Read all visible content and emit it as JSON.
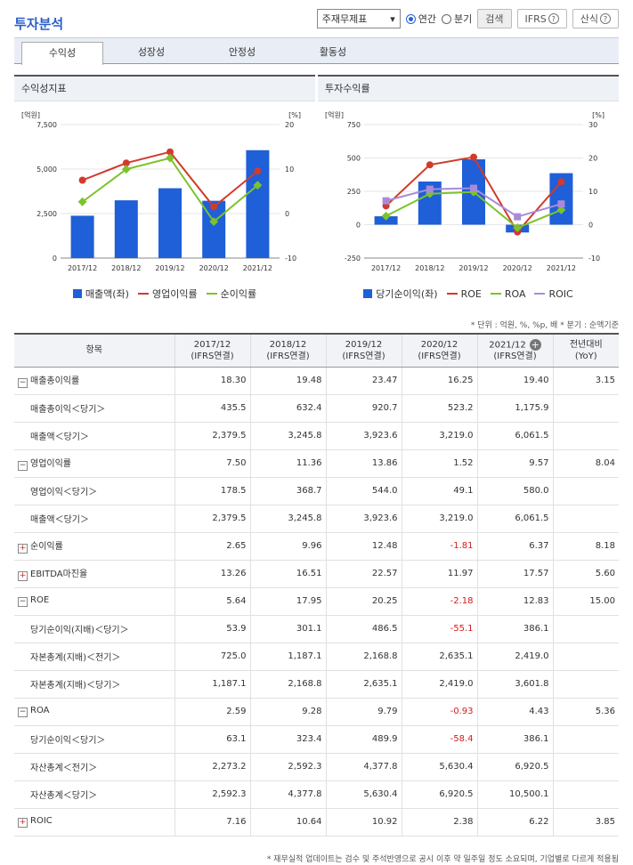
{
  "title": "투자분석",
  "controls": {
    "select": "주재무제표",
    "radio_annual": "연간",
    "radio_quarter": "분기",
    "search": "검색",
    "ifrs": "IFRS",
    "formula": "산식"
  },
  "tabs": [
    "수익성",
    "성장성",
    "안정성",
    "활동성"
  ],
  "left_chart": {
    "title": "수익성지표",
    "left_unit": "[억원]",
    "right_unit": "[%]"
  },
  "right_chart": {
    "title": "투자수익률",
    "left_unit": "[억원]",
    "right_unit": "[%]"
  },
  "legend_left": [
    "매출액(좌)",
    "영업이익률",
    "순이익률"
  ],
  "legend_right": [
    "당기순이익(좌)",
    "ROE",
    "ROA",
    "ROIC"
  ],
  "colors": {
    "bar": "#1f5fd8",
    "red": "#d23a2b",
    "green": "#7cc32a",
    "purple": "#a98ad8"
  },
  "chart_data": [
    {
      "type": "bar",
      "categories": [
        "2017/12",
        "2018/12",
        "2019/12",
        "2020/12",
        "2021/12"
      ],
      "series": [
        {
          "name": "매출액(좌)",
          "values": [
            2379.5,
            3245.8,
            3923.6,
            3219.0,
            6061.5
          ],
          "axis": "left"
        },
        {
          "name": "영업이익률",
          "values": [
            7.5,
            11.36,
            13.86,
            1.52,
            9.57
          ],
          "axis": "right"
        },
        {
          "name": "순이익률",
          "values": [
            2.65,
            9.96,
            12.48,
            -1.81,
            6.37
          ],
          "axis": "right"
        }
      ],
      "left_ticks": [
        "0",
        "2,500",
        "5,000",
        "7,500"
      ],
      "right_ticks": [
        "-10",
        "0",
        "10",
        "20"
      ],
      "ylim": [
        0,
        7500
      ],
      "y2lim": [
        -10,
        20
      ]
    },
    {
      "type": "bar",
      "categories": [
        "2017/12",
        "2018/12",
        "2019/12",
        "2020/12",
        "2021/12"
      ],
      "series": [
        {
          "name": "당기순이익(좌)",
          "values": [
            63.1,
            323.4,
            489.9,
            -58.4,
            386.1
          ],
          "axis": "left"
        },
        {
          "name": "ROE",
          "values": [
            5.64,
            17.95,
            20.25,
            -2.18,
            12.83
          ],
          "axis": "right"
        },
        {
          "name": "ROA",
          "values": [
            2.59,
            9.28,
            9.79,
            -0.93,
            4.43
          ],
          "axis": "right"
        },
        {
          "name": "ROIC",
          "values": [
            7.16,
            10.64,
            10.92,
            2.38,
            6.22
          ],
          "axis": "right"
        }
      ],
      "left_ticks": [
        "-250",
        "0",
        "250",
        "500",
        "750"
      ],
      "right_ticks": [
        "-10",
        "0",
        "10",
        "20",
        "30"
      ],
      "ylim": [
        -250,
        750
      ],
      "y2lim": [
        -10,
        30
      ]
    }
  ],
  "note": "* 단위 : 억원, %, %p, 배   * 분기 : 순액기준",
  "table": {
    "headers": [
      [
        "항목"
      ],
      [
        "2017/12",
        "(IFRS연결)"
      ],
      [
        "2018/12",
        "(IFRS연결)"
      ],
      [
        "2019/12",
        "(IFRS연결)"
      ],
      [
        "2020/12",
        "(IFRS연결)"
      ],
      [
        "2021/12",
        "(IFRS연결)"
      ],
      [
        "전년대비",
        "(YoY)"
      ]
    ],
    "rows": [
      {
        "label": "매출총이익률",
        "type": "minus",
        "vals": [
          "18.30",
          "19.48",
          "23.47",
          "16.25",
          "19.40",
          "3.15"
        ]
      },
      {
        "label": "매출총이익＜당기＞",
        "type": "sub",
        "vals": [
          "435.5",
          "632.4",
          "920.7",
          "523.2",
          "1,175.9",
          ""
        ]
      },
      {
        "label": "매출액＜당기＞",
        "type": "sub",
        "vals": [
          "2,379.5",
          "3,245.8",
          "3,923.6",
          "3,219.0",
          "6,061.5",
          ""
        ]
      },
      {
        "label": "영업이익률",
        "type": "minus",
        "vals": [
          "7.50",
          "11.36",
          "13.86",
          "1.52",
          "9.57",
          "8.04"
        ]
      },
      {
        "label": "영업이익＜당기＞",
        "type": "sub",
        "vals": [
          "178.5",
          "368.7",
          "544.0",
          "49.1",
          "580.0",
          ""
        ]
      },
      {
        "label": "매출액＜당기＞",
        "type": "sub",
        "vals": [
          "2,379.5",
          "3,245.8",
          "3,923.6",
          "3,219.0",
          "6,061.5",
          ""
        ]
      },
      {
        "label": "순이익률",
        "type": "plus",
        "vals": [
          "2.65",
          "9.96",
          "12.48",
          "-1.81",
          "6.37",
          "8.18"
        ]
      },
      {
        "label": "EBITDA마진율",
        "type": "plus",
        "vals": [
          "13.26",
          "16.51",
          "22.57",
          "11.97",
          "17.57",
          "5.60"
        ]
      },
      {
        "label": "ROE",
        "type": "minus",
        "vals": [
          "5.64",
          "17.95",
          "20.25",
          "-2.18",
          "12.83",
          "15.00"
        ]
      },
      {
        "label": "당기순이익(지배)＜당기＞",
        "type": "sub",
        "vals": [
          "53.9",
          "301.1",
          "486.5",
          "-55.1",
          "386.1",
          ""
        ]
      },
      {
        "label": "자본총계(지배)＜전기＞",
        "type": "sub",
        "vals": [
          "725.0",
          "1,187.1",
          "2,168.8",
          "2,635.1",
          "2,419.0",
          ""
        ]
      },
      {
        "label": "자본총계(지배)＜당기＞",
        "type": "sub",
        "vals": [
          "1,187.1",
          "2,168.8",
          "2,635.1",
          "2,419.0",
          "3,601.8",
          ""
        ]
      },
      {
        "label": "ROA",
        "type": "minus",
        "vals": [
          "2.59",
          "9.28",
          "9.79",
          "-0.93",
          "4.43",
          "5.36"
        ]
      },
      {
        "label": "당기순이익＜당기＞",
        "type": "sub",
        "vals": [
          "63.1",
          "323.4",
          "489.9",
          "-58.4",
          "386.1",
          ""
        ]
      },
      {
        "label": "자산총계＜전기＞",
        "type": "sub",
        "vals": [
          "2,273.2",
          "2,592.3",
          "4,377.8",
          "5,630.4",
          "6,920.5",
          ""
        ]
      },
      {
        "label": "자산총계＜당기＞",
        "type": "sub",
        "vals": [
          "2,592.3",
          "4,377.8",
          "5,630.4",
          "6,920.5",
          "10,500.1",
          ""
        ]
      },
      {
        "label": "ROIC",
        "type": "plus",
        "vals": [
          "7.16",
          "10.64",
          "10.92",
          "2.38",
          "6.22",
          "3.85"
        ]
      }
    ]
  },
  "footer": "* 재무실적 업데이트는 검수 및 주석반영으로 공시 이후 약 일주일 정도 소요되며, 기업별로 다르게 적용됨"
}
